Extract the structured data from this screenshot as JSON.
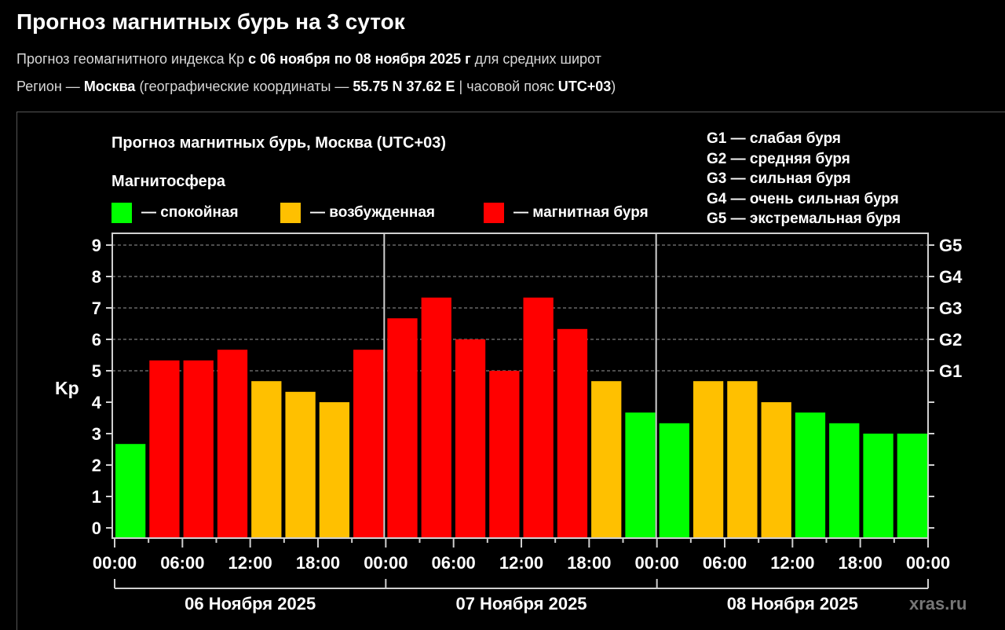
{
  "header": {
    "title": "Прогноз магнитных бурь на 3 суток",
    "subtitle1": {
      "prefix": "Прогноз геомагнитного индекса Кр ",
      "range": "с 06 ноября по 08 ноября 2025 г",
      "suffix": " для средних широт"
    },
    "subtitle2": {
      "region_label": "Регион — ",
      "region": "Москва",
      "coords_label": " (географические координаты — ",
      "coords": "55.75 N 37.62 E",
      "tz_label": " | часовой пояс ",
      "tz": "UTC+03",
      "close": ")"
    }
  },
  "legend": {
    "heading": "Магнитосфера",
    "items": [
      {
        "label": "— спокойная",
        "color": "#00ff00"
      },
      {
        "label": "— возбужденная",
        "color": "#ffc000"
      },
      {
        "label": "— магнитная буря",
        "color": "#ff0000"
      }
    ]
  },
  "g_scale": [
    "G1 — слабая буря",
    "G2 — средняя буря",
    "G3 — сильная буря",
    "G4 — очень сильная буря",
    "G5 — экстремальная буря"
  ],
  "watermark": "xras.ru",
  "chart_data": {
    "type": "bar",
    "title": "Прогноз магнитных бурь, Москва (UTC+03)",
    "xlabel": "",
    "ylabel": "Kp",
    "ylim": [
      0,
      9
    ],
    "yticks": [
      0,
      1,
      2,
      3,
      4,
      5,
      6,
      7,
      8,
      9
    ],
    "right_axis_labels": [
      {
        "value": 5,
        "label": "G1"
      },
      {
        "value": 6,
        "label": "G2"
      },
      {
        "value": 7,
        "label": "G3"
      },
      {
        "value": 8,
        "label": "G4"
      },
      {
        "value": 9,
        "label": "G5"
      }
    ],
    "grid": "dashed horizontal at 5-9",
    "xtick_labels": [
      "00:00",
      "06:00",
      "12:00",
      "18:00",
      "00:00",
      "06:00",
      "12:00",
      "18:00",
      "00:00",
      "06:00",
      "12:00",
      "18:00",
      "00:00"
    ],
    "days": [
      "06 Ноября 2025",
      "07 Ноября 2025",
      "08 Ноября 2025"
    ],
    "interval_hours": 3,
    "categories": [
      "06.11 00-03",
      "06.11 03-06",
      "06.11 06-09",
      "06.11 09-12",
      "06.11 12-15",
      "06.11 15-18",
      "06.11 18-21",
      "06.11 21-24",
      "07.11 00-03",
      "07.11 03-06",
      "07.11 06-09",
      "07.11 09-12",
      "07.11 12-15",
      "07.11 15-18",
      "07.11 18-21",
      "07.11 21-24",
      "08.11 00-03",
      "08.11 03-06",
      "08.11 06-09",
      "08.11 09-12",
      "08.11 12-15",
      "08.11 15-18",
      "08.11 18-21",
      "08.11 21-24"
    ],
    "values": [
      2.67,
      5.33,
      5.33,
      5.67,
      4.67,
      4.33,
      4.0,
      5.67,
      6.67,
      7.33,
      6.0,
      5.0,
      7.33,
      6.33,
      4.67,
      3.67,
      3.33,
      4.67,
      4.67,
      4.0,
      3.67,
      3.33,
      3.0,
      3.0
    ],
    "status": [
      "quiet",
      "storm",
      "storm",
      "storm",
      "active",
      "active",
      "active",
      "storm",
      "storm",
      "storm",
      "storm",
      "storm",
      "storm",
      "storm",
      "active",
      "quiet",
      "quiet",
      "active",
      "active",
      "active",
      "quiet",
      "quiet",
      "quiet",
      "quiet"
    ],
    "colors": {
      "quiet": "#00ff00",
      "active": "#ffc000",
      "storm": "#ff0000"
    }
  }
}
